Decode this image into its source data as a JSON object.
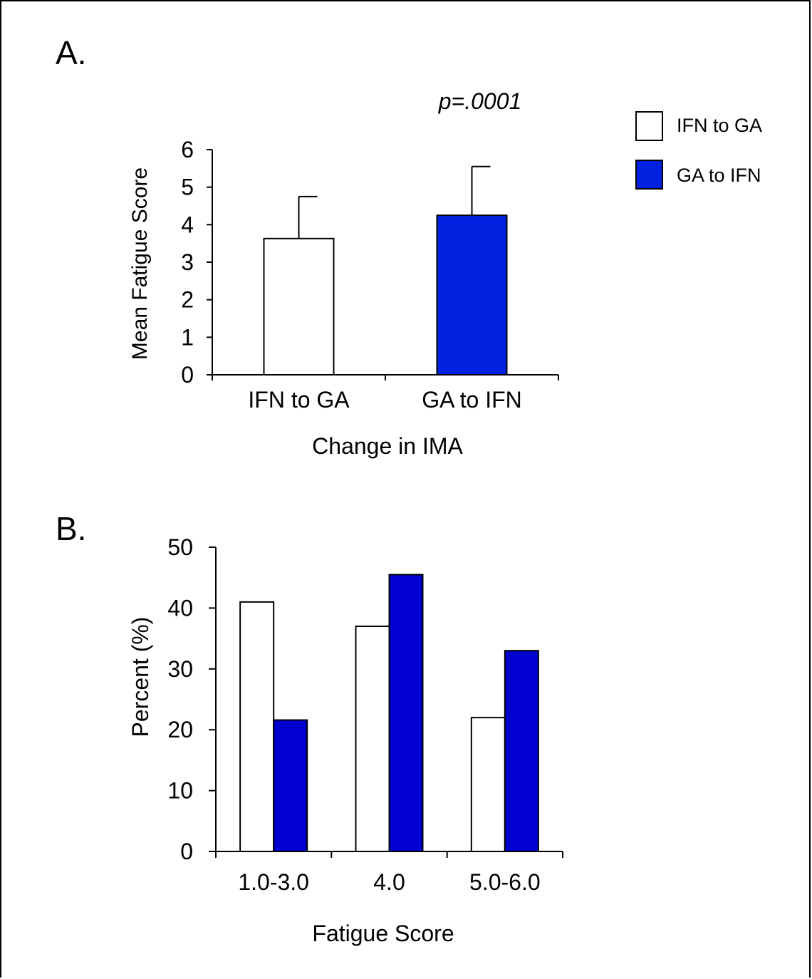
{
  "legend": {
    "items": [
      {
        "label": "IFN to GA",
        "color": "#ffffff"
      },
      {
        "label": "GA to IFN",
        "color": "#0022e0"
      }
    ]
  },
  "chart_data": [
    {
      "panel_label": "A.",
      "type": "bar",
      "annotation": "p=.0001",
      "categories": [
        "IFN to GA",
        "GA to IFN"
      ],
      "values": [
        3.63,
        4.25
      ],
      "error_upper": [
        4.75,
        5.55
      ],
      "colors": [
        "#ffffff",
        "#0022e0"
      ],
      "xlabel": "Change in IMA",
      "ylabel": "Mean Fatigue Score",
      "ylim": [
        0,
        6
      ],
      "yticks": [
        "0",
        "1",
        "2",
        "3",
        "4",
        "5",
        "6"
      ],
      "grid": false
    },
    {
      "panel_label": "B.",
      "type": "bar",
      "categories": [
        "1.0-3.0",
        "4.0",
        "5.0-6.0"
      ],
      "series": [
        {
          "name": "IFN to GA",
          "color": "#ffffff",
          "values": [
            41,
            37,
            22
          ]
        },
        {
          "name": "GA to IFN",
          "color": "#0000d0",
          "values": [
            21.6,
            45.5,
            33
          ]
        }
      ],
      "xlabel": "Fatigue Score",
      "ylabel": "Percent (%)",
      "ylim": [
        0,
        50
      ],
      "yticks": [
        "0",
        "10",
        "20",
        "30",
        "40",
        "50"
      ],
      "grid": false
    }
  ]
}
